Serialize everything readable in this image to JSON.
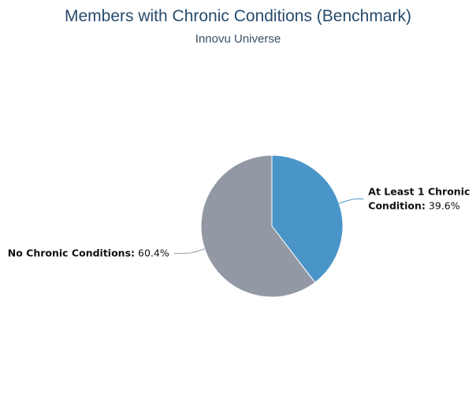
{
  "chart_data": {
    "type": "pie",
    "title": "Members with Chronic Conditions (Benchmark)",
    "subtitle": "Innovu Universe",
    "slices": [
      {
        "label": "At Least 1 Chronic Condition",
        "label_lines": [
          "At Least 1 Chronic",
          "Condition"
        ],
        "value": 39.6,
        "value_text": "39.6%",
        "color": "#4a95c8",
        "connector_color": "#4a95c8",
        "label_side": "right"
      },
      {
        "label": "No Chronic Conditions",
        "label_lines": [
          "No Chronic Conditions"
        ],
        "value": 60.4,
        "value_text": "60.4%",
        "color": "#9299a5",
        "connector_color": "#9299a5",
        "label_side": "left"
      }
    ],
    "start_angle": "12 o'clock",
    "direction": "clockwise",
    "legend": "none"
  }
}
